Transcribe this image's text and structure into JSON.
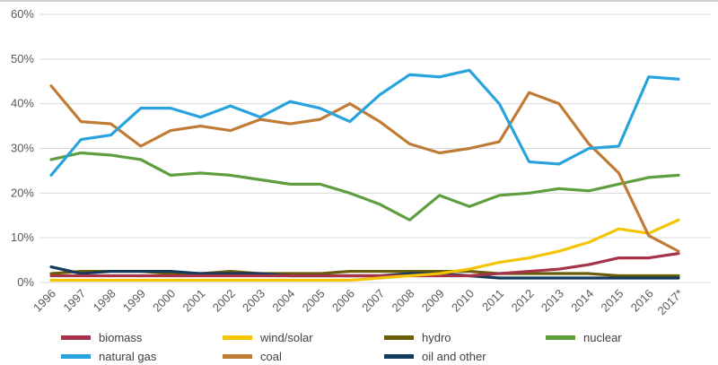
{
  "chart_data": {
    "type": "line",
    "title": "",
    "xlabel": "",
    "ylabel": "",
    "ylim": [
      0,
      60
    ],
    "grid": true,
    "legend_position": "bottom",
    "yticks": [
      0,
      10,
      20,
      30,
      40,
      50,
      60
    ],
    "ytick_labels": [
      "0%",
      "10%",
      "20%",
      "30%",
      "40%",
      "50%",
      "60%"
    ],
    "categories": [
      "1996",
      "1997",
      "1998",
      "1999",
      "2000",
      "2001",
      "2002",
      "2003",
      "2004",
      "2005",
      "2006",
      "2007",
      "2008",
      "2009",
      "2010",
      "2011",
      "2012",
      "2013",
      "2014",
      "2015",
      "2016",
      "2017*"
    ],
    "series": [
      {
        "name": "biomass",
        "color": "#a6334a",
        "values": [
          1.5,
          1.5,
          1.5,
          1.5,
          1.5,
          1.5,
          1.5,
          1.5,
          1.5,
          1.5,
          1.5,
          1.5,
          1.5,
          1.5,
          1.5,
          2,
          2.5,
          3,
          4,
          5.5,
          5.5,
          6.5
        ]
      },
      {
        "name": "wind/solar",
        "color": "#f2c500",
        "values": [
          0.5,
          0.5,
          0.5,
          0.5,
          0.5,
          0.5,
          0.5,
          0.5,
          0.5,
          0.5,
          0.5,
          1,
          1.5,
          2,
          3,
          4.5,
          5.5,
          7,
          9,
          12,
          11,
          14
        ]
      },
      {
        "name": "hydro",
        "color": "#6b5d07",
        "values": [
          2,
          2.5,
          2.5,
          2.5,
          2,
          2,
          2.5,
          2,
          2,
          2,
          2.5,
          2.5,
          2.5,
          2.5,
          2.5,
          2,
          2,
          2,
          2,
          1.5,
          1.5,
          1.5
        ]
      },
      {
        "name": "nuclear",
        "color": "#5f9e3f",
        "values": [
          27.5,
          29,
          28.5,
          27.5,
          24,
          24.5,
          24,
          23,
          22,
          22,
          20,
          17.5,
          14,
          19.5,
          17,
          19.5,
          20,
          21,
          20.5,
          22,
          23.5,
          24
        ]
      },
      {
        "name": "natural gas",
        "color": "#29a3dd",
        "values": [
          24,
          32,
          33,
          39,
          39,
          37,
          39.5,
          37,
          40.5,
          39,
          36,
          42,
          46.5,
          46,
          47.5,
          40,
          27,
          26.5,
          30,
          30.5,
          46,
          45.5
        ]
      },
      {
        "name": "coal",
        "color": "#c07b35",
        "values": [
          44,
          36,
          35.5,
          30.5,
          34,
          35,
          34,
          36.5,
          35.5,
          36.5,
          40,
          36,
          31,
          29,
          30,
          31.5,
          42.5,
          40,
          31,
          24.5,
          10.5,
          7
        ]
      },
      {
        "name": "oil and other",
        "color": "#143a5c",
        "values": [
          3.5,
          2,
          2.5,
          2.5,
          2.5,
          2,
          2,
          2,
          1.5,
          1.5,
          1.5,
          1.5,
          2,
          2,
          1.5,
          1,
          1,
          1,
          1,
          1,
          1,
          1
        ]
      }
    ]
  }
}
